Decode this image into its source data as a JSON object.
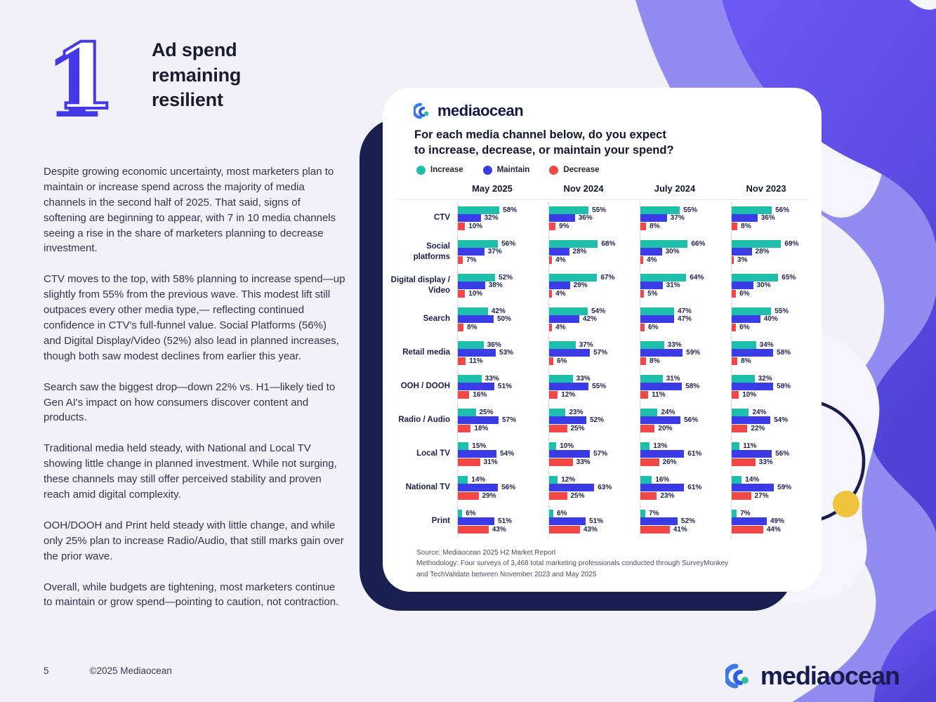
{
  "page": {
    "number": "5",
    "copyright": "©2025 Mediaocean",
    "brand": "mediaocean"
  },
  "section": {
    "number": "1",
    "heading": "Ad spend remaining resilient",
    "paragraphs": [
      "Despite growing economic uncertainty, most marketers plan to maintain or increase spend across the majority of media channels in the second half of 2025. That said, signs of softening are beginning to appear, with 7 in 10 media channels seeing a rise in the share of marketers planning to decrease investment.",
      "CTV moves to the top, with 58% planning to increase spend—up slightly from 55% from the previous wave. This modest lift still outpaces every other media type,— reflecting  continued confidence in CTV's full-funnel value. Social Platforms (56%) and Digital Display/Video (52%) also lead in planned increases, though both saw modest declines from earlier this year.",
      "Search saw the biggest drop—down 22% vs. H1—likely tied to Gen AI's impact on how consumers discover content and products.",
      "Traditional media held steady, with National and Local TV showing little change in planned investment. While not surging, these channels may still offer perceived stability and proven reach amid digital complexity.",
      "OOH/DOOH and Print held steady with little change, and while only 25% plan to increase Radio/Audio, that still marks gain over the prior wave.",
      "Overall, while budgets are tightening, most marketers continue to maintain or grow spend—pointing to caution, not contraction."
    ]
  },
  "card": {
    "brand": "mediaocean",
    "question_line1": "For each media channel below, do you expect",
    "question_line2": "to increase, decrease, or maintain your spend?",
    "source_lines": [
      "Source: Mediaocean 2025 H2 Market Report",
      "Methodology: Four surveys of 3,468 total marketing professionals conducted through SurveyMonkey",
      "and TechValidate between November 2023 and May 2025"
    ]
  },
  "chart_data": {
    "type": "bar",
    "orientation": "horizontal",
    "unit": "%",
    "title": "For each media channel below, do you expect to increase, decrease, or maintain your spend?",
    "legend_position": "top",
    "grid": "vertical-axis-lines-only",
    "xlim": [
      0,
      100
    ],
    "legend": [
      {
        "label": "Increase",
        "color": "#1cbfa9"
      },
      {
        "label": "Maintain",
        "color": "#3b3be8"
      },
      {
        "label": "Decrease",
        "color": "#f24747"
      }
    ],
    "waves": [
      "May 2025",
      "Nov 2024",
      "July 2024",
      "Nov 2023"
    ],
    "series_order_per_cell": [
      "Increase",
      "Maintain",
      "Decrease"
    ],
    "rows": [
      {
        "channel": "CTV",
        "values": [
          [
            58,
            32,
            10
          ],
          [
            55,
            36,
            9
          ],
          [
            55,
            37,
            8
          ],
          [
            56,
            36,
            8
          ]
        ]
      },
      {
        "channel": "Social platforms",
        "values": [
          [
            56,
            37,
            7
          ],
          [
            68,
            28,
            4
          ],
          [
            66,
            30,
            4
          ],
          [
            69,
            28,
            3
          ]
        ]
      },
      {
        "channel": "Digital display / Video",
        "values": [
          [
            52,
            38,
            10
          ],
          [
            67,
            29,
            4
          ],
          [
            64,
            31,
            5
          ],
          [
            65,
            30,
            6
          ]
        ]
      },
      {
        "channel": "Search",
        "values": [
          [
            42,
            50,
            8
          ],
          [
            54,
            42,
            4
          ],
          [
            47,
            47,
            6
          ],
          [
            55,
            40,
            6
          ]
        ]
      },
      {
        "channel": "Retail media",
        "values": [
          [
            36,
            53,
            11
          ],
          [
            37,
            57,
            6
          ],
          [
            33,
            59,
            8
          ],
          [
            34,
            58,
            8
          ]
        ]
      },
      {
        "channel": "OOH / DOOH",
        "values": [
          [
            33,
            51,
            16
          ],
          [
            33,
            55,
            12
          ],
          [
            31,
            58,
            11
          ],
          [
            32,
            58,
            10
          ]
        ]
      },
      {
        "channel": "Radio / Audio",
        "values": [
          [
            25,
            57,
            18
          ],
          [
            23,
            52,
            25
          ],
          [
            24,
            56,
            20
          ],
          [
            24,
            54,
            22
          ]
        ]
      },
      {
        "channel": "Local TV",
        "values": [
          [
            15,
            54,
            31
          ],
          [
            10,
            57,
            33
          ],
          [
            13,
            61,
            26
          ],
          [
            11,
            56,
            33
          ]
        ]
      },
      {
        "channel": "National TV",
        "values": [
          [
            14,
            56,
            29
          ],
          [
            12,
            63,
            25
          ],
          [
            16,
            61,
            23
          ],
          [
            14,
            59,
            27
          ]
        ]
      },
      {
        "channel": "Print",
        "values": [
          [
            6,
            51,
            43
          ],
          [
            6,
            51,
            43
          ],
          [
            7,
            52,
            41
          ],
          [
            7,
            49,
            44
          ]
        ]
      }
    ]
  },
  "colors": {
    "accent_indigo": "#5b4ce6",
    "lavender": "#938cf0",
    "card_shadow_navy": "#1a1f52",
    "arc_navy": "#191d4e",
    "yellow_dot": "#f0c33e",
    "page_background": "#f2f1f8"
  }
}
